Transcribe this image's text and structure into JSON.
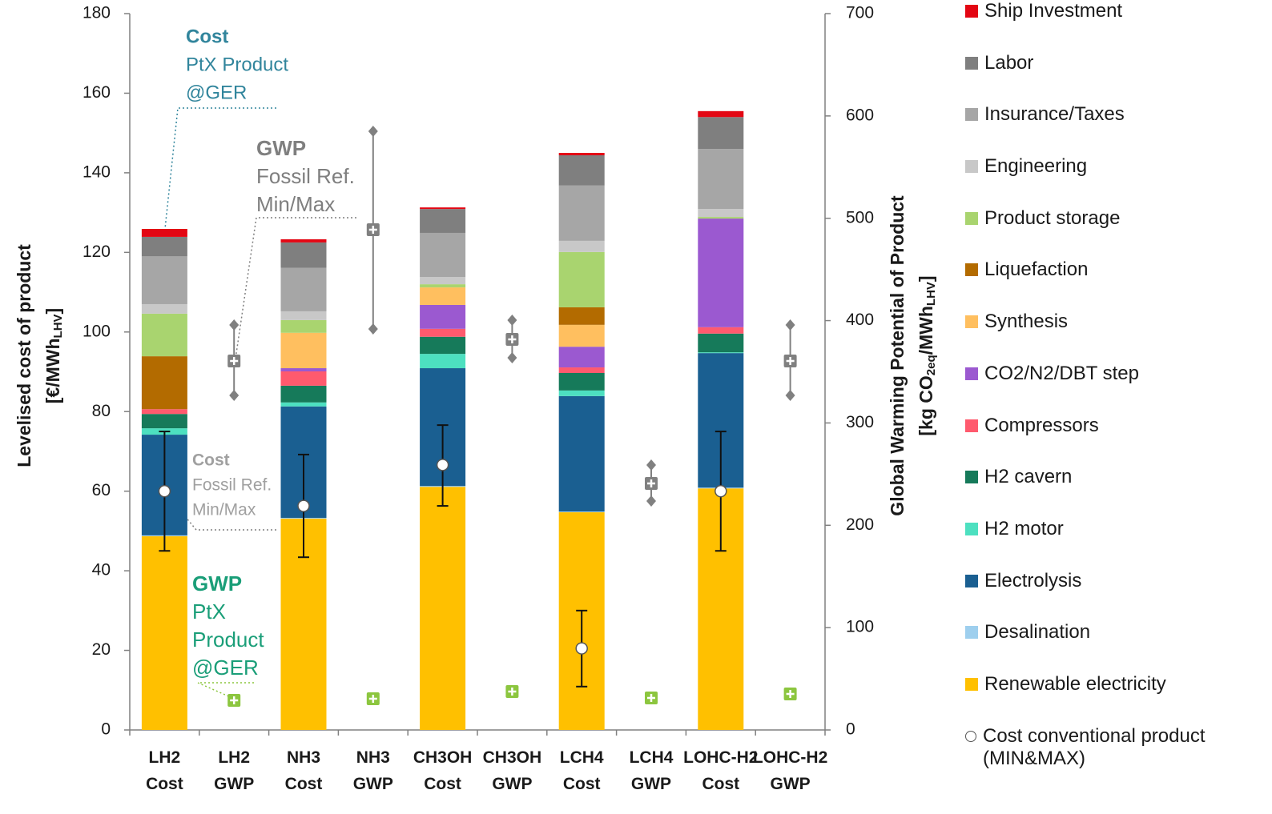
{
  "chart_data": {
    "type": "bar",
    "stacked": true,
    "categories": [
      "LH2 Cost",
      "LH2 GWP",
      "NH3 Cost",
      "NH3 GWP",
      "CH3OH Cost",
      "CH3OH GWP",
      "LCH4 Cost",
      "LCH4 GWP",
      "LOHC-H2 Cost",
      "LOHC-H2 GWP"
    ],
    "ylabel": [
      "Levelised cost of product",
      "[€/MWh",
      "LHV",
      "]"
    ],
    "y2label": [
      "Global Warming Potential of Product",
      "[kg CO",
      "2eq",
      "/MWh",
      "LHV",
      "]"
    ],
    "ylim": [
      0,
      180
    ],
    "yticks": [
      0,
      20,
      40,
      60,
      80,
      100,
      120,
      140,
      160,
      180
    ],
    "y2lim": [
      0,
      700
    ],
    "y2ticks": [
      0,
      100,
      200,
      300,
      400,
      500,
      600,
      700
    ],
    "series": [
      {
        "name": "Renewable electricity",
        "color": "#ffc000",
        "values": [
          48.7,
          null,
          53.1,
          null,
          61.1,
          null,
          54.7,
          null,
          60.7,
          null
        ]
      },
      {
        "name": "Desalination",
        "color": "#9ecfee",
        "values": [
          0.2,
          null,
          0.2,
          null,
          0.2,
          null,
          0.2,
          null,
          0.2,
          null
        ]
      },
      {
        "name": "Electrolysis",
        "color": "#1a5f91",
        "values": [
          25.3,
          null,
          28.0,
          null,
          29.6,
          null,
          29.0,
          null,
          33.8,
          null
        ]
      },
      {
        "name": "H2 motor",
        "color": "#4de0c0",
        "values": [
          1.6,
          null,
          1.0,
          null,
          3.6,
          null,
          1.4,
          null,
          0.2,
          null
        ]
      },
      {
        "name": "H2 cavern",
        "color": "#167a5a",
        "values": [
          3.6,
          null,
          4.2,
          null,
          4.3,
          null,
          4.4,
          null,
          4.7,
          null
        ]
      },
      {
        "name": "Compressors",
        "color": "#ff5a6e",
        "values": [
          1.2,
          null,
          3.6,
          null,
          2.0,
          null,
          1.4,
          null,
          1.6,
          null
        ]
      },
      {
        "name": "CO2/N2/DBT step",
        "color": "#9b59d0",
        "values": [
          0,
          null,
          0.8,
          null,
          6.0,
          null,
          5.2,
          null,
          27.3,
          null
        ]
      },
      {
        "name": "Synthesis",
        "color": "#ffbf5f",
        "values": [
          0,
          null,
          8.9,
          null,
          4.4,
          null,
          5.5,
          null,
          0,
          null
        ]
      },
      {
        "name": "Liquefaction",
        "color": "#b36b00",
        "values": [
          13.3,
          null,
          0,
          null,
          0,
          null,
          4.4,
          null,
          0,
          null
        ]
      },
      {
        "name": "Product storage",
        "color": "#a9d46f",
        "values": [
          10.7,
          null,
          3.2,
          null,
          0.8,
          null,
          13.9,
          null,
          0.4,
          null
        ]
      },
      {
        "name": "Engineering",
        "color": "#c8c8c8",
        "values": [
          2.4,
          null,
          2.2,
          null,
          1.8,
          null,
          2.8,
          null,
          2.0,
          null
        ]
      },
      {
        "name": "Insurance/Taxes",
        "color": "#a6a6a6",
        "values": [
          12.0,
          null,
          10.9,
          null,
          11.1,
          null,
          13.9,
          null,
          15.1,
          null
        ]
      },
      {
        "name": "Labor",
        "color": "#7f7f7f",
        "values": [
          4.9,
          null,
          6.4,
          null,
          6.0,
          null,
          7.6,
          null,
          8.0,
          null
        ]
      },
      {
        "name": "Ship Investment",
        "color": "#e30613",
        "values": [
          2.0,
          null,
          0.8,
          null,
          0.4,
          null,
          0.6,
          null,
          1.5,
          null
        ]
      }
    ],
    "cost_conventional": {
      "name": "Cost conventional product (MIN&MAX)",
      "values": [
        60,
        null,
        56.3,
        null,
        66.6,
        null,
        20.5,
        null,
        60,
        null
      ],
      "min": [
        45,
        null,
        43.4,
        null,
        56.3,
        null,
        10.9,
        null,
        45,
        null
      ],
      "max": [
        75,
        null,
        69.2,
        null,
        76.6,
        null,
        30,
        null,
        75,
        null
      ]
    },
    "gwp_fossil": {
      "axis": "y2",
      "color": "#808080",
      "values": [
        null,
        360.6,
        null,
        488.8,
        null,
        381.7,
        null,
        240.9,
        null,
        360.6
      ],
      "min": [
        null,
        326.9,
        null,
        391.8,
        null,
        363.7,
        null,
        223.7,
        null,
        326.9
      ],
      "max": [
        null,
        395.8,
        null,
        585,
        null,
        400.4,
        null,
        258.9,
        null,
        395.8
      ]
    },
    "gwp_ptx": {
      "axis": "y2",
      "color": "#8cc63f",
      "values": [
        null,
        28.9,
        null,
        30.5,
        null,
        37.5,
        null,
        31.3,
        null,
        35.2
      ]
    },
    "annotations": [
      {
        "lines": [
          "Cost",
          "PtX Product",
          "@GER"
        ],
        "color": "#31859c"
      },
      {
        "lines": [
          "GWP",
          "Fossil Ref.",
          "Min/Max"
        ],
        "color": "#7f7f7f"
      },
      {
        "lines": [
          "Cost",
          "Fossil Ref.",
          "Min/Max"
        ],
        "color": "#a0a0a0"
      },
      {
        "lines": [
          "GWP",
          "PtX",
          "Product",
          "@GER"
        ],
        "color": "#1a9e78"
      }
    ]
  }
}
